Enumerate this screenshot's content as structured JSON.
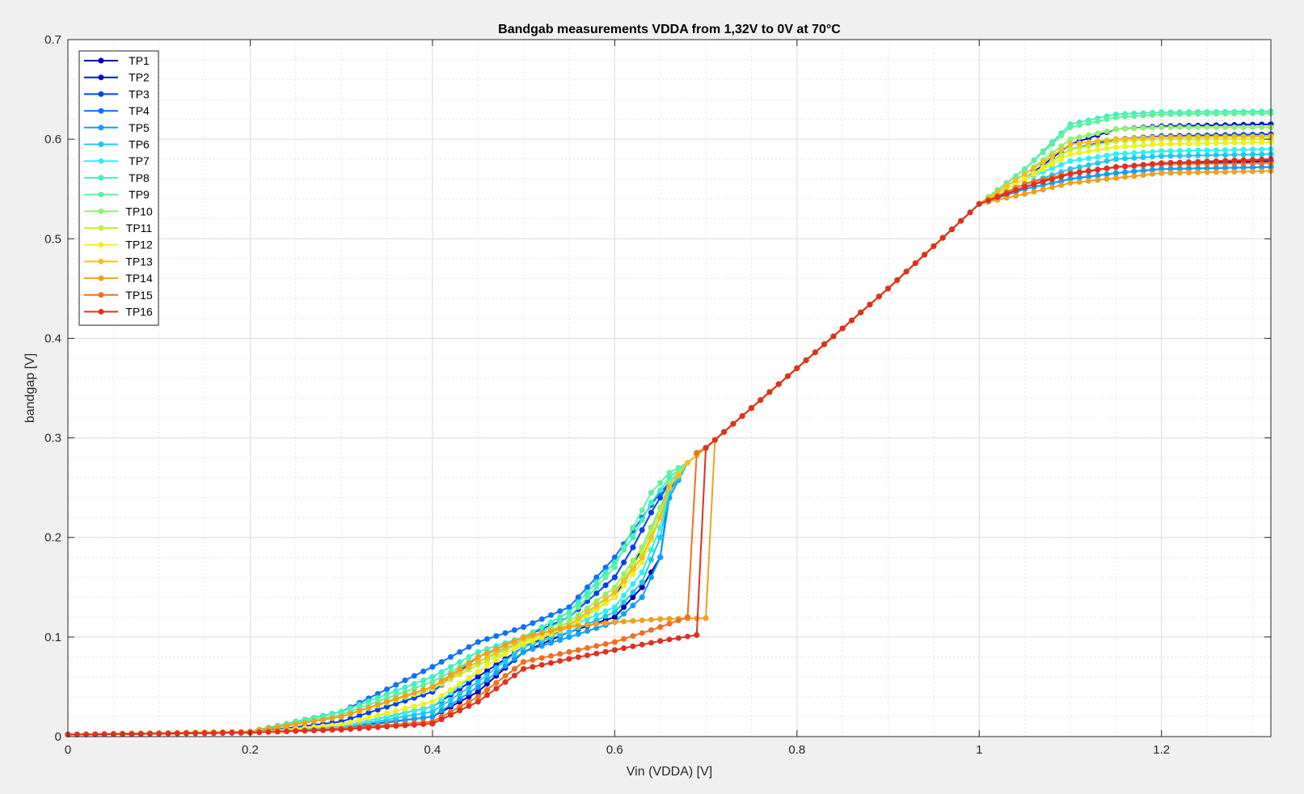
{
  "chart_data": {
    "type": "line",
    "title": "Bandgab measurements VDDA from 1,32V to 0V at 70°C",
    "xlabel": "Vin (VDDA) [V]",
    "ylabel": "bandgap [V]",
    "xlim": [
      0,
      1.32
    ],
    "ylim": [
      0,
      0.7
    ],
    "xticks": [
      0,
      0.2,
      0.4,
      0.6,
      0.8,
      1,
      1.2
    ],
    "xtick_labels": [
      "0",
      "0.2",
      "0.4",
      "0.6",
      "0.8",
      "1",
      "1.2"
    ],
    "yticks": [
      0,
      0.1,
      0.2,
      0.3,
      0.4,
      0.5,
      0.6,
      0.7
    ],
    "ytick_labels": [
      "0",
      "0.1",
      "0.2",
      "0.3",
      "0.4",
      "0.5",
      "0.6",
      "0.7"
    ],
    "grid": true,
    "minor_grid": true,
    "legend_position": "top-left",
    "marker": "circle",
    "series": [
      {
        "name": "TP1",
        "color": "#0000a8",
        "x": [
          0,
          0.2,
          0.3,
          0.4,
          0.45,
          0.5,
          0.55,
          0.6,
          0.63,
          0.65,
          0.66,
          0.67,
          0.68,
          0.7,
          0.75,
          0.8,
          0.9,
          1.0,
          1.05,
          1.1,
          1.15,
          1.2,
          1.32
        ],
        "y": [
          0.002,
          0.004,
          0.009,
          0.02,
          0.045,
          0.085,
          0.105,
          0.12,
          0.15,
          0.18,
          0.245,
          0.265,
          0.275,
          0.29,
          0.33,
          0.37,
          0.45,
          0.535,
          0.552,
          0.566,
          0.572,
          0.575,
          0.578
        ]
      },
      {
        "name": "TP2",
        "color": "#0010d8",
        "x": [
          0,
          0.2,
          0.3,
          0.4,
          0.45,
          0.5,
          0.55,
          0.6,
          0.62,
          0.64,
          0.66,
          0.68,
          0.7,
          0.75,
          0.8,
          0.9,
          1.0,
          1.05,
          1.1,
          1.15,
          1.2,
          1.32
        ],
        "y": [
          0.002,
          0.004,
          0.01,
          0.03,
          0.06,
          0.09,
          0.11,
          0.14,
          0.17,
          0.21,
          0.25,
          0.275,
          0.29,
          0.33,
          0.37,
          0.45,
          0.535,
          0.56,
          0.595,
          0.61,
          0.613,
          0.615
        ]
      },
      {
        "name": "TP3",
        "color": "#0040f0",
        "x": [
          0,
          0.2,
          0.3,
          0.4,
          0.45,
          0.5,
          0.55,
          0.6,
          0.62,
          0.64,
          0.66,
          0.68,
          0.7,
          0.75,
          0.8,
          0.9,
          1.0,
          1.05,
          1.1,
          1.15,
          1.2,
          1.32
        ],
        "y": [
          0.002,
          0.004,
          0.015,
          0.045,
          0.08,
          0.1,
          0.12,
          0.16,
          0.19,
          0.225,
          0.255,
          0.275,
          0.29,
          0.33,
          0.37,
          0.45,
          0.535,
          0.56,
          0.59,
          0.6,
          0.603,
          0.605
        ]
      },
      {
        "name": "TP4",
        "color": "#1070ff",
        "x": [
          0,
          0.2,
          0.3,
          0.4,
          0.45,
          0.5,
          0.55,
          0.6,
          0.63,
          0.65,
          0.67,
          0.68,
          0.7,
          0.75,
          0.8,
          0.9,
          1.0,
          1.05,
          1.1,
          1.15,
          1.2,
          1.32
        ],
        "y": [
          0.002,
          0.005,
          0.025,
          0.07,
          0.095,
          0.11,
          0.13,
          0.18,
          0.22,
          0.245,
          0.265,
          0.275,
          0.29,
          0.33,
          0.37,
          0.45,
          0.535,
          0.55,
          0.56,
          0.566,
          0.57,
          0.572
        ]
      },
      {
        "name": "TP5",
        "color": "#10a0ff",
        "x": [
          0,
          0.2,
          0.3,
          0.4,
          0.45,
          0.5,
          0.55,
          0.6,
          0.63,
          0.65,
          0.66,
          0.68,
          0.7,
          0.75,
          0.8,
          0.9,
          1.0,
          1.05,
          1.1,
          1.15,
          1.2,
          1.32
        ],
        "y": [
          0.002,
          0.004,
          0.008,
          0.02,
          0.05,
          0.085,
          0.1,
          0.115,
          0.14,
          0.18,
          0.24,
          0.275,
          0.29,
          0.33,
          0.37,
          0.45,
          0.535,
          0.55,
          0.56,
          0.566,
          0.57,
          0.572
        ]
      },
      {
        "name": "TP6",
        "color": "#20c8f0",
        "x": [
          0,
          0.2,
          0.3,
          0.4,
          0.45,
          0.5,
          0.55,
          0.6,
          0.63,
          0.65,
          0.66,
          0.68,
          0.7,
          0.75,
          0.8,
          0.9,
          1.0,
          1.05,
          1.1,
          1.15,
          1.2,
          1.32
        ],
        "y": [
          0.002,
          0.004,
          0.009,
          0.025,
          0.055,
          0.09,
          0.105,
          0.125,
          0.155,
          0.2,
          0.245,
          0.275,
          0.29,
          0.33,
          0.37,
          0.45,
          0.535,
          0.555,
          0.57,
          0.58,
          0.583,
          0.585
        ]
      },
      {
        "name": "TP7",
        "color": "#30f0f0",
        "x": [
          0,
          0.2,
          0.3,
          0.4,
          0.45,
          0.5,
          0.55,
          0.6,
          0.63,
          0.65,
          0.66,
          0.68,
          0.7,
          0.75,
          0.8,
          0.9,
          1.0,
          1.05,
          1.1,
          1.15,
          1.2,
          1.32
        ],
        "y": [
          0.002,
          0.004,
          0.01,
          0.03,
          0.065,
          0.095,
          0.11,
          0.13,
          0.165,
          0.21,
          0.25,
          0.275,
          0.29,
          0.33,
          0.37,
          0.45,
          0.535,
          0.56,
          0.578,
          0.585,
          0.588,
          0.59
        ]
      },
      {
        "name": "TP8",
        "color": "#40f0c0",
        "x": [
          0,
          0.2,
          0.3,
          0.4,
          0.45,
          0.5,
          0.55,
          0.6,
          0.62,
          0.64,
          0.66,
          0.68,
          0.7,
          0.75,
          0.8,
          0.9,
          1.0,
          1.05,
          1.1,
          1.15,
          1.2,
          1.32
        ],
        "y": [
          0.002,
          0.005,
          0.025,
          0.06,
          0.085,
          0.1,
          0.125,
          0.175,
          0.2,
          0.235,
          0.26,
          0.275,
          0.29,
          0.33,
          0.37,
          0.45,
          0.535,
          0.57,
          0.615,
          0.625,
          0.627,
          0.628
        ]
      },
      {
        "name": "TP9",
        "color": "#60f0a0",
        "x": [
          0,
          0.2,
          0.3,
          0.4,
          0.45,
          0.5,
          0.55,
          0.6,
          0.62,
          0.64,
          0.66,
          0.68,
          0.7,
          0.75,
          0.8,
          0.9,
          1.0,
          1.05,
          1.1,
          1.15,
          1.2,
          1.32
        ],
        "y": [
          0.002,
          0.005,
          0.022,
          0.055,
          0.08,
          0.095,
          0.12,
          0.17,
          0.21,
          0.245,
          0.265,
          0.275,
          0.29,
          0.33,
          0.37,
          0.45,
          0.535,
          0.57,
          0.612,
          0.622,
          0.625,
          0.626
        ]
      },
      {
        "name": "TP10",
        "color": "#90f070",
        "x": [
          0,
          0.2,
          0.3,
          0.4,
          0.45,
          0.5,
          0.55,
          0.6,
          0.63,
          0.65,
          0.66,
          0.68,
          0.7,
          0.75,
          0.8,
          0.9,
          1.0,
          1.05,
          1.1,
          1.15,
          1.2,
          1.32
        ],
        "y": [
          0.002,
          0.005,
          0.02,
          0.05,
          0.075,
          0.095,
          0.115,
          0.15,
          0.19,
          0.23,
          0.255,
          0.275,
          0.29,
          0.33,
          0.37,
          0.45,
          0.535,
          0.565,
          0.6,
          0.61,
          0.612,
          0.612
        ]
      },
      {
        "name": "TP11",
        "color": "#c0f040",
        "x": [
          0,
          0.2,
          0.3,
          0.4,
          0.45,
          0.5,
          0.55,
          0.6,
          0.63,
          0.65,
          0.66,
          0.68,
          0.7,
          0.75,
          0.8,
          0.9,
          1.0,
          1.05,
          1.1,
          1.15,
          1.2,
          1.32
        ],
        "y": [
          0.002,
          0.005,
          0.02,
          0.048,
          0.072,
          0.092,
          0.11,
          0.145,
          0.185,
          0.225,
          0.25,
          0.275,
          0.29,
          0.33,
          0.37,
          0.45,
          0.535,
          0.56,
          0.59,
          0.598,
          0.6,
          0.6
        ]
      },
      {
        "name": "TP12",
        "color": "#f0f020",
        "x": [
          0,
          0.2,
          0.3,
          0.4,
          0.45,
          0.5,
          0.55,
          0.6,
          0.63,
          0.65,
          0.66,
          0.68,
          0.7,
          0.75,
          0.8,
          0.9,
          1.0,
          1.05,
          1.1,
          1.15,
          1.2,
          1.32
        ],
        "y": [
          0.002,
          0.004,
          0.012,
          0.035,
          0.065,
          0.095,
          0.11,
          0.14,
          0.175,
          0.22,
          0.25,
          0.275,
          0.29,
          0.33,
          0.37,
          0.45,
          0.535,
          0.56,
          0.585,
          0.592,
          0.595,
          0.597
        ]
      },
      {
        "name": "TP13",
        "color": "#f0c020",
        "x": [
          0,
          0.2,
          0.3,
          0.4,
          0.45,
          0.5,
          0.55,
          0.6,
          0.63,
          0.65,
          0.66,
          0.68,
          0.7,
          0.75,
          0.8,
          0.9,
          1.0,
          1.05,
          1.1,
          1.15,
          1.2,
          1.32
        ],
        "y": [
          0.002,
          0.005,
          0.02,
          0.05,
          0.075,
          0.098,
          0.112,
          0.145,
          0.18,
          0.22,
          0.25,
          0.275,
          0.29,
          0.33,
          0.37,
          0.45,
          0.535,
          0.565,
          0.595,
          0.6,
          0.602,
          0.603
        ]
      },
      {
        "name": "TP14",
        "color": "#f0a020",
        "x": [
          0,
          0.2,
          0.3,
          0.4,
          0.45,
          0.5,
          0.55,
          0.6,
          0.65,
          0.7,
          0.71,
          0.75,
          0.8,
          0.9,
          1.0,
          1.05,
          1.1,
          1.15,
          1.2,
          1.32
        ],
        "y": [
          0.002,
          0.005,
          0.02,
          0.05,
          0.08,
          0.1,
          0.11,
          0.115,
          0.118,
          0.119,
          0.298,
          0.33,
          0.37,
          0.45,
          0.535,
          0.545,
          0.556,
          0.561,
          0.566,
          0.568
        ]
      },
      {
        "name": "TP15",
        "color": "#f07020",
        "x": [
          0,
          0.2,
          0.3,
          0.4,
          0.45,
          0.5,
          0.55,
          0.6,
          0.65,
          0.68,
          0.69,
          0.7,
          0.75,
          0.8,
          0.9,
          1.0,
          1.05,
          1.1,
          1.15,
          1.2,
          1.32
        ],
        "y": [
          0.002,
          0.004,
          0.008,
          0.015,
          0.04,
          0.075,
          0.085,
          0.095,
          0.11,
          0.12,
          0.285,
          0.29,
          0.33,
          0.37,
          0.45,
          0.535,
          0.555,
          0.566,
          0.572,
          0.575,
          0.576
        ]
      },
      {
        "name": "TP16",
        "color": "#e03020",
        "x": [
          0,
          0.2,
          0.3,
          0.4,
          0.45,
          0.5,
          0.55,
          0.6,
          0.65,
          0.69,
          0.7,
          0.75,
          0.8,
          0.9,
          1.0,
          1.05,
          1.1,
          1.15,
          1.2,
          1.32
        ],
        "y": [
          0.002,
          0.004,
          0.007,
          0.013,
          0.035,
          0.068,
          0.078,
          0.087,
          0.096,
          0.102,
          0.29,
          0.33,
          0.37,
          0.45,
          0.535,
          0.552,
          0.565,
          0.572,
          0.576,
          0.58
        ]
      }
    ]
  }
}
